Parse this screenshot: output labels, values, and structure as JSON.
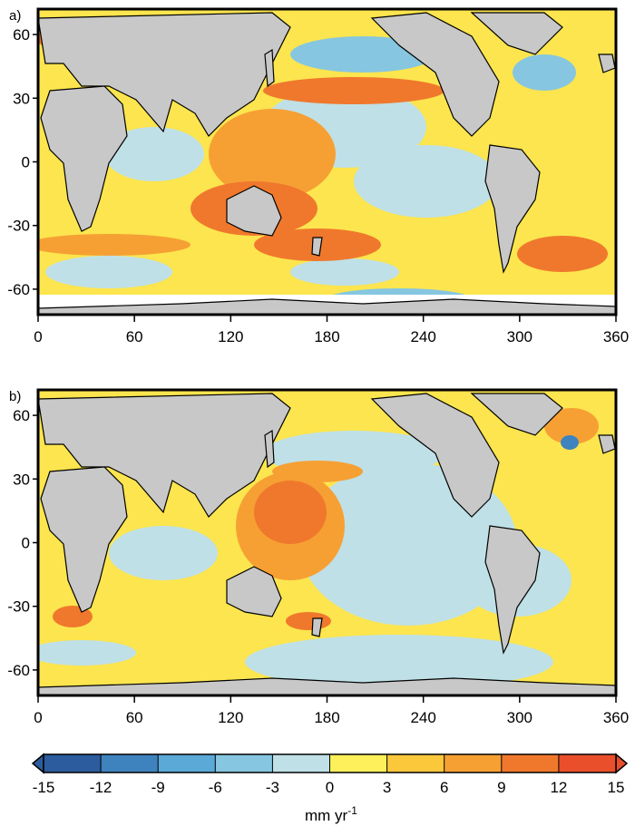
{
  "figure": {
    "panels": [
      {
        "label": "a)",
        "lat_ticks": [
          "60",
          "30",
          "0",
          "-30",
          "-60"
        ],
        "lon_ticks": [
          "0",
          "60",
          "120",
          "180",
          "240",
          "300",
          "360"
        ],
        "lat_range": [
          -72,
          72
        ],
        "lon_range": [
          0,
          360
        ]
      },
      {
        "label": "b)",
        "lat_ticks": [
          "60",
          "30",
          "0",
          "-30",
          "-60"
        ],
        "lon_ticks": [
          "0",
          "60",
          "120",
          "180",
          "240",
          "300",
          "360"
        ],
        "lat_range": [
          -72,
          72
        ],
        "lon_range": [
          0,
          360
        ]
      }
    ],
    "colorbar": {
      "tick_labels": [
        "-15",
        "-12",
        "-9",
        "-6",
        "-3",
        "0",
        "3",
        "6",
        "9",
        "12",
        "15"
      ],
      "unit_prefix": "mm yr",
      "unit_exponent": "-1",
      "colors": [
        "#2c5c9e",
        "#3f83be",
        "#5aa9d6",
        "#86c6e0",
        "#bfe0e6",
        "#fdf05a",
        "#fbc83c",
        "#f6a034",
        "#f0782c",
        "#e94f2a"
      ]
    }
  }
}
